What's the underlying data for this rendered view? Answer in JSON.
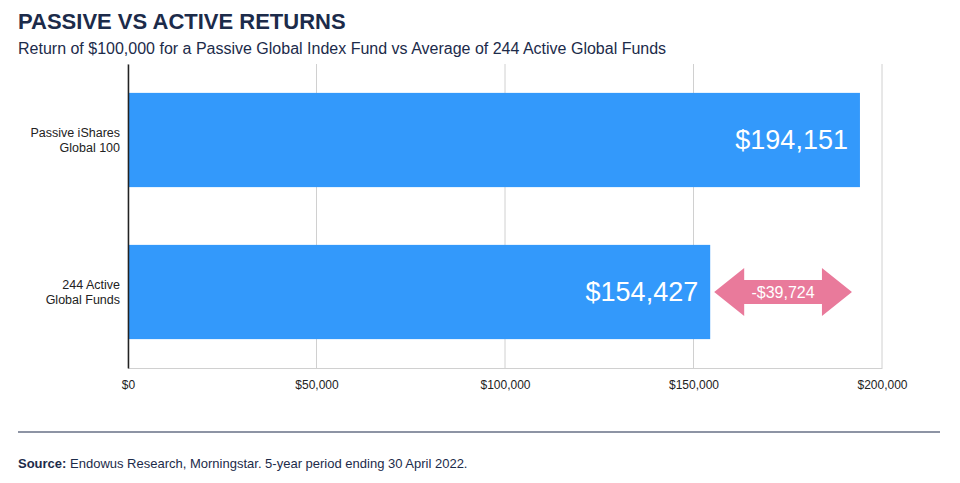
{
  "chart_data": {
    "type": "bar",
    "orientation": "horizontal",
    "title": "PASSIVE VS ACTIVE RETURNS",
    "subtitle": "Return of $100,000 for a Passive Global Index Fund vs Average of 244 Active Global Funds",
    "categories": [
      "Passive iShares\nGlobal 100",
      "244 Active\nGlobal Funds"
    ],
    "values": [
      194151,
      154427
    ],
    "value_labels": [
      "$194,151",
      "$154,427"
    ],
    "data_labels": true,
    "color": "#3399fb",
    "xlim": [
      0,
      200000
    ],
    "xticks": [
      {
        "value": 0,
        "label": "$0"
      },
      {
        "value": 50000,
        "label": "$50,000"
      },
      {
        "value": 100000,
        "label": "$100,000"
      },
      {
        "value": 150000,
        "label": "$150,000"
      },
      {
        "value": 200000,
        "label": "$200,000"
      }
    ],
    "grid": true,
    "annotation": "-$39,724",
    "source": "Source: Endowus Research, Morningstar. 5-year period ending 30 April 2022."
  }
}
